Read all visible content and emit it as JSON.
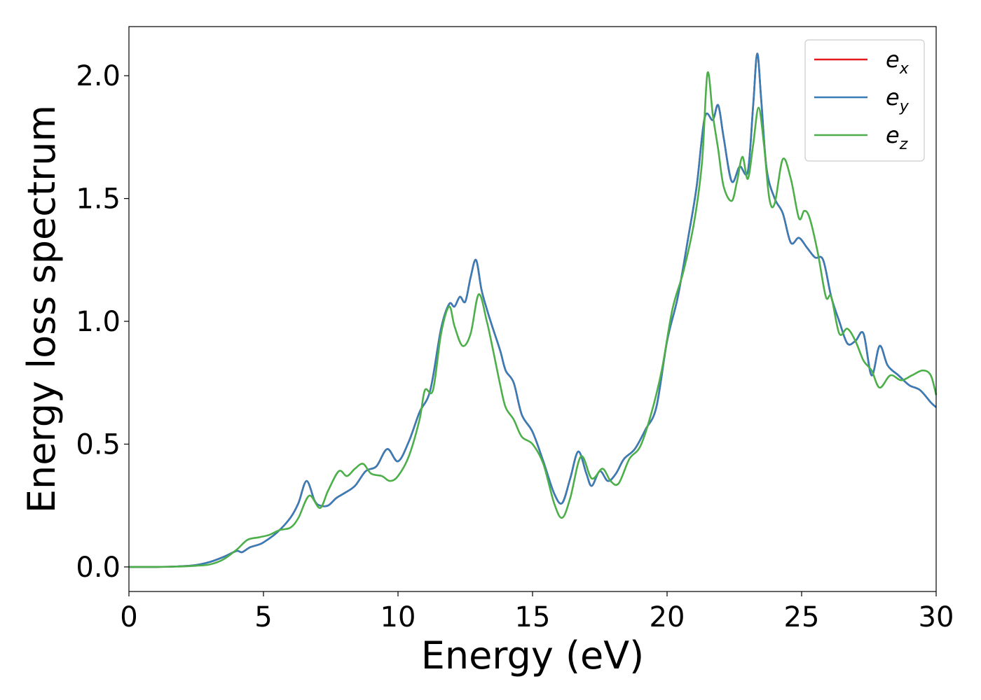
{
  "chart_data": {
    "type": "line",
    "xlabel": "Energy (eV)",
    "ylabel": "Energy loss spectrum",
    "xlim": [
      0,
      30
    ],
    "ylim": [
      -0.1,
      2.2
    ],
    "xticks": [
      0,
      5,
      10,
      15,
      20,
      25,
      30
    ],
    "xtick_labels": [
      "0",
      "5",
      "10",
      "15",
      "20",
      "25",
      "30"
    ],
    "yticks": [
      0.0,
      0.5,
      1.0,
      1.5,
      2.0
    ],
    "ytick_labels": [
      "0.0",
      "0.5",
      "1.0",
      "1.5",
      "2.0"
    ],
    "grid": false,
    "legend_position": "top-right",
    "series": [
      {
        "name": "e_x",
        "legend_base": "e",
        "legend_sub": "x",
        "color": "#e41a1c",
        "x": [
          0,
          1,
          2,
          2.5,
          3,
          3.5,
          4,
          4.2,
          4.5,
          4.8,
          5,
          5.5,
          6,
          6.3,
          6.6,
          6.9,
          7.1,
          7.4,
          7.7,
          8,
          8.4,
          8.8,
          9.2,
          9.6,
          10,
          10.4,
          10.8,
          11.2,
          11.6,
          11.9,
          12.1,
          12.3,
          12.5,
          12.7,
          12.9,
          13.1,
          13.3,
          13.5,
          13.8,
          14,
          14.3,
          14.6,
          15,
          15.4,
          15.8,
          16.1,
          16.4,
          16.7,
          17,
          17.2,
          17.5,
          17.8,
          18.1,
          18.4,
          18.8,
          19.2,
          19.6,
          20,
          20.4,
          20.8,
          21.1,
          21.4,
          21.7,
          21.9,
          22.1,
          22.4,
          22.7,
          23,
          23.2,
          23.35,
          23.5,
          23.7,
          24,
          24.3,
          24.6,
          24.9,
          25.2,
          25.5,
          25.8,
          26.1,
          26.4,
          26.7,
          27,
          27.3,
          27.6,
          27.9,
          28.2,
          28.6,
          29,
          29.4,
          29.8,
          30
        ],
        "y": [
          0,
          0,
          0.003,
          0.008,
          0.02,
          0.04,
          0.065,
          0.06,
          0.08,
          0.09,
          0.1,
          0.14,
          0.2,
          0.26,
          0.35,
          0.27,
          0.25,
          0.25,
          0.28,
          0.3,
          0.33,
          0.39,
          0.41,
          0.48,
          0.43,
          0.51,
          0.63,
          0.72,
          0.97,
          1.07,
          1.06,
          1.1,
          1.08,
          1.18,
          1.25,
          1.13,
          1.05,
          0.98,
          0.88,
          0.8,
          0.75,
          0.62,
          0.55,
          0.43,
          0.3,
          0.26,
          0.36,
          0.47,
          0.38,
          0.33,
          0.39,
          0.35,
          0.38,
          0.44,
          0.48,
          0.56,
          0.65,
          0.92,
          1.1,
          1.35,
          1.55,
          1.83,
          1.82,
          1.88,
          1.75,
          1.57,
          1.63,
          1.61,
          1.88,
          2.09,
          1.9,
          1.62,
          1.5,
          1.44,
          1.32,
          1.34,
          1.3,
          1.26,
          1.25,
          1.1,
          1.0,
          0.91,
          0.92,
          0.95,
          0.78,
          0.9,
          0.82,
          0.78,
          0.74,
          0.72,
          0.67,
          0.65
        ]
      },
      {
        "name": "e_y",
        "legend_base": "e",
        "legend_sub": "y",
        "color": "#377eb8",
        "x": [
          0,
          1,
          2,
          2.5,
          3,
          3.5,
          4,
          4.2,
          4.5,
          4.8,
          5,
          5.5,
          6,
          6.3,
          6.6,
          6.9,
          7.1,
          7.4,
          7.7,
          8,
          8.4,
          8.8,
          9.2,
          9.6,
          10,
          10.4,
          10.8,
          11.2,
          11.6,
          11.9,
          12.1,
          12.3,
          12.5,
          12.7,
          12.9,
          13.1,
          13.3,
          13.5,
          13.8,
          14,
          14.3,
          14.6,
          15,
          15.4,
          15.8,
          16.1,
          16.4,
          16.7,
          17,
          17.2,
          17.5,
          17.8,
          18.1,
          18.4,
          18.8,
          19.2,
          19.6,
          20,
          20.4,
          20.8,
          21.1,
          21.4,
          21.7,
          21.9,
          22.1,
          22.4,
          22.7,
          23,
          23.2,
          23.35,
          23.5,
          23.7,
          24,
          24.3,
          24.6,
          24.9,
          25.2,
          25.5,
          25.8,
          26.1,
          26.4,
          26.7,
          27,
          27.3,
          27.6,
          27.9,
          28.2,
          28.6,
          29,
          29.4,
          29.8,
          30
        ],
        "y": [
          0,
          0,
          0.003,
          0.008,
          0.02,
          0.04,
          0.065,
          0.06,
          0.08,
          0.09,
          0.1,
          0.14,
          0.2,
          0.26,
          0.35,
          0.27,
          0.25,
          0.25,
          0.28,
          0.3,
          0.33,
          0.39,
          0.41,
          0.48,
          0.43,
          0.51,
          0.63,
          0.72,
          0.97,
          1.07,
          1.06,
          1.1,
          1.08,
          1.18,
          1.25,
          1.13,
          1.05,
          0.98,
          0.88,
          0.8,
          0.75,
          0.62,
          0.55,
          0.43,
          0.3,
          0.26,
          0.36,
          0.47,
          0.38,
          0.33,
          0.39,
          0.35,
          0.38,
          0.44,
          0.48,
          0.56,
          0.65,
          0.92,
          1.1,
          1.35,
          1.55,
          1.83,
          1.82,
          1.88,
          1.75,
          1.57,
          1.63,
          1.61,
          1.88,
          2.09,
          1.9,
          1.62,
          1.5,
          1.44,
          1.32,
          1.34,
          1.3,
          1.26,
          1.25,
          1.1,
          1.0,
          0.91,
          0.92,
          0.95,
          0.78,
          0.9,
          0.82,
          0.78,
          0.74,
          0.72,
          0.67,
          0.65
        ]
      },
      {
        "name": "e_z",
        "legend_base": "e",
        "legend_sub": "z",
        "color": "#4daf4a",
        "x": [
          0,
          1,
          2,
          2.5,
          3,
          3.5,
          4,
          4.4,
          4.8,
          5.2,
          5.6,
          6,
          6.3,
          6.7,
          7.1,
          7.4,
          7.8,
          8.1,
          8.4,
          8.7,
          9,
          9.4,
          9.7,
          10,
          10.4,
          10.8,
          11,
          11.3,
          11.6,
          11.9,
          12.1,
          12.4,
          12.7,
          13,
          13.3,
          13.5,
          13.8,
          14,
          14.3,
          14.6,
          15,
          15.4,
          15.8,
          16.1,
          16.4,
          16.8,
          17.2,
          17.6,
          17.9,
          18.2,
          18.6,
          19,
          19.4,
          19.8,
          20.2,
          20.6,
          21,
          21.3,
          21.5,
          21.7,
          21.9,
          22.1,
          22.4,
          22.6,
          22.8,
          23,
          23.2,
          23.4,
          23.6,
          23.8,
          24,
          24.3,
          24.6,
          24.9,
          25.1,
          25.3,
          25.6,
          25.9,
          26.1,
          26.4,
          26.7,
          27,
          27.3,
          27.6,
          27.9,
          28.3,
          28.7,
          29.1,
          29.5,
          29.8,
          30
        ],
        "y": [
          0,
          0,
          0.002,
          0.005,
          0.01,
          0.03,
          0.07,
          0.11,
          0.12,
          0.13,
          0.15,
          0.16,
          0.2,
          0.29,
          0.24,
          0.31,
          0.39,
          0.37,
          0.4,
          0.42,
          0.38,
          0.37,
          0.35,
          0.37,
          0.45,
          0.6,
          0.72,
          0.72,
          0.95,
          1.06,
          0.98,
          0.9,
          0.95,
          1.11,
          1.0,
          0.9,
          0.74,
          0.65,
          0.6,
          0.53,
          0.5,
          0.42,
          0.26,
          0.2,
          0.28,
          0.45,
          0.36,
          0.4,
          0.35,
          0.34,
          0.44,
          0.49,
          0.62,
          0.8,
          1.05,
          1.2,
          1.4,
          1.65,
          2.01,
          1.84,
          1.7,
          1.55,
          1.49,
          1.57,
          1.67,
          1.58,
          1.72,
          1.87,
          1.72,
          1.5,
          1.48,
          1.66,
          1.58,
          1.42,
          1.45,
          1.42,
          1.28,
          1.1,
          1.1,
          0.95,
          0.97,
          0.92,
          0.84,
          0.8,
          0.73,
          0.78,
          0.76,
          0.78,
          0.8,
          0.78,
          0.7
        ]
      }
    ]
  }
}
